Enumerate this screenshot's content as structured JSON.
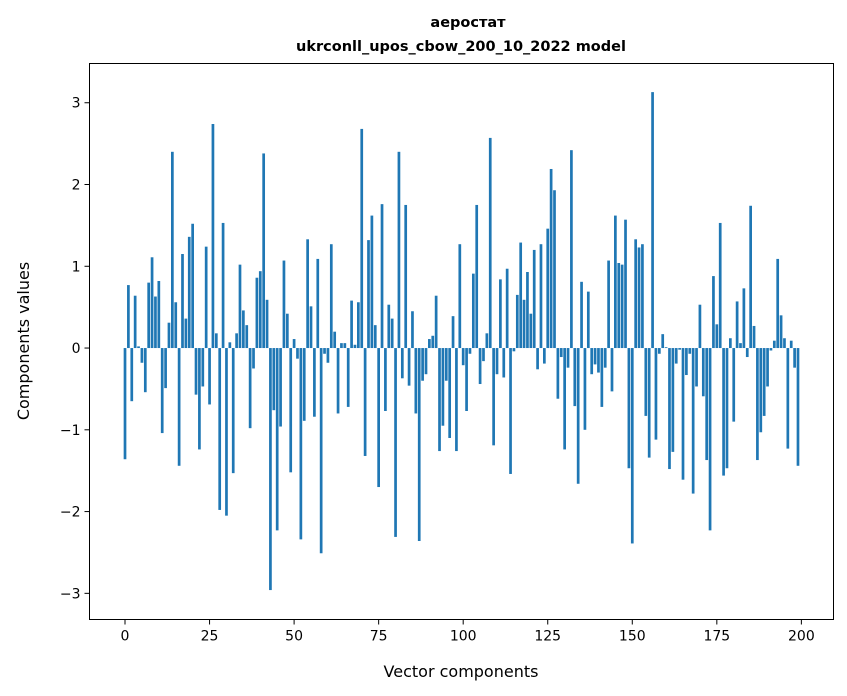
{
  "chart_data": {
    "type": "bar",
    "title": [
      "аеростат",
      "ukrconll_upos_cbow_200_10_2022 model"
    ],
    "xlabel": "Vector components",
    "ylabel": "Components values",
    "xlim": [
      -10.5,
      209.5
    ],
    "ylim": [
      -3.32,
      3.48
    ],
    "xticks": [
      0,
      25,
      50,
      75,
      100,
      125,
      150,
      175,
      200
    ],
    "xtick_labels": [
      "0",
      "25",
      "50",
      "75",
      "100",
      "125",
      "150",
      "175",
      "200"
    ],
    "yticks": [
      -3,
      -2,
      -1,
      0,
      1,
      2,
      3
    ],
    "ytick_labels": [
      "−3",
      "−2",
      "−1",
      "0",
      "1",
      "2",
      "3"
    ],
    "grid": false,
    "bar_color": "#1f77b4",
    "values": [
      -1.36,
      0.77,
      -0.65,
      0.64,
      0.02,
      -0.18,
      -0.54,
      0.8,
      1.11,
      0.63,
      0.82,
      -1.04,
      -0.49,
      0.31,
      2.4,
      0.56,
      -1.44,
      1.15,
      0.36,
      1.36,
      1.52,
      -0.57,
      -1.24,
      -0.47,
      1.24,
      -0.69,
      2.74,
      0.18,
      -1.98,
      1.53,
      -2.05,
      0.07,
      -1.53,
      0.18,
      1.02,
      0.46,
      0.28,
      -0.98,
      -0.25,
      0.86,
      0.94,
      2.38,
      0.59,
      -2.96,
      -0.76,
      -2.23,
      -0.96,
      1.07,
      0.42,
      -1.52,
      0.11,
      -0.13,
      -2.34,
      -0.89,
      1.33,
      0.51,
      -0.84,
      1.09,
      -2.51,
      -0.07,
      -0.18,
      1.27,
      0.2,
      -0.8,
      0.06,
      0.06,
      -0.72,
      0.58,
      0.04,
      0.56,
      2.68,
      -1.32,
      1.32,
      1.62,
      0.28,
      -1.7,
      1.76,
      -0.77,
      0.53,
      0.36,
      -2.31,
      2.4,
      -0.37,
      1.75,
      -0.46,
      0.45,
      -0.8,
      -2.36,
      -0.4,
      -0.32,
      0.11,
      0.15,
      0.64,
      -1.26,
      -0.95,
      -0.4,
      -1.1,
      0.39,
      -1.26,
      1.27,
      -0.21,
      -0.77,
      -0.07,
      0.91,
      1.75,
      -0.44,
      -0.16,
      0.18,
      2.57,
      -1.19,
      -0.32,
      0.84,
      -0.36,
      0.97,
      -1.54,
      -0.04,
      0.65,
      1.29,
      0.59,
      0.93,
      0.42,
      1.2,
      -0.26,
      1.27,
      -0.19,
      1.46,
      2.19,
      1.93,
      -0.62,
      -0.11,
      -1.24,
      -0.24,
      2.42,
      -0.71,
      -1.66,
      0.81,
      -1.0,
      0.69,
      -0.32,
      -0.2,
      -0.3,
      -0.72,
      -0.24,
      1.07,
      -0.53,
      1.62,
      1.04,
      1.02,
      1.57,
      -1.47,
      -2.39,
      1.33,
      1.23,
      1.27,
      -0.83,
      -1.34,
      3.13,
      -1.12,
      -0.07,
      0.17,
      0.01,
      -1.48,
      -1.27,
      -0.19,
      -0.02,
      -1.61,
      -0.33,
      -0.07,
      -1.78,
      -0.47,
      0.53,
      -0.59,
      -1.37,
      -2.23,
      0.88,
      0.29,
      1.53,
      -1.56,
      -1.47,
      0.12,
      -0.9,
      0.57,
      0.06,
      0.73,
      -0.11,
      1.74,
      0.27,
      -1.37,
      -1.03,
      -0.83,
      -0.47,
      -0.03,
      0.09,
      1.09,
      0.4,
      0.12,
      -1.23,
      0.09,
      -0.24,
      -1.44
    ]
  }
}
